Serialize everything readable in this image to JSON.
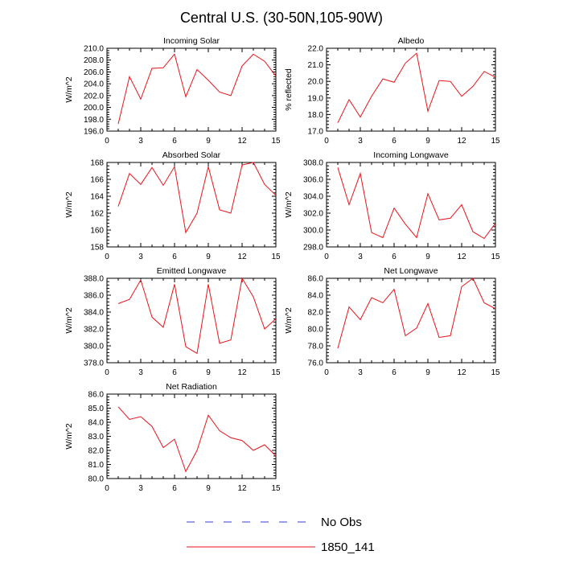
{
  "figure": {
    "title": "Central U.S. (30-50N,105-90W)"
  },
  "legend": {
    "entries": [
      {
        "name": "No Obs",
        "color": "#3b3bdb",
        "style": "dashed"
      },
      {
        "name": "1850_141",
        "color": "#e8141b",
        "style": "solid"
      }
    ]
  },
  "chart_data": [
    {
      "type": "line",
      "title": "Incoming Solar",
      "ylabel": "W/m^2",
      "xlim": [
        0,
        15
      ],
      "ylim": [
        196,
        210
      ],
      "xticks": [
        0,
        3,
        6,
        9,
        12,
        15
      ],
      "yticks": [
        196.0,
        198.0,
        200.0,
        202.0,
        204.0,
        206.0,
        208.0,
        210.0
      ],
      "ydecimals": 1,
      "series": [
        {
          "name": "1850_141",
          "color": "#e8141b",
          "x": [
            1,
            2,
            3,
            4,
            5,
            6,
            7,
            8,
            9,
            10,
            11,
            12,
            13,
            14,
            15
          ],
          "values": [
            197.2,
            205.2,
            201.4,
            206.6,
            206.7,
            209.0,
            201.8,
            206.4,
            204.6,
            202.6,
            202.0,
            207.0,
            209.0,
            207.8,
            205.3
          ]
        }
      ]
    },
    {
      "type": "line",
      "title": "Albedo",
      "ylabel": "% reflected",
      "xlim": [
        0,
        15
      ],
      "ylim": [
        17,
        22
      ],
      "xticks": [
        0,
        3,
        6,
        9,
        12,
        15
      ],
      "yticks": [
        17.0,
        18.0,
        19.0,
        20.0,
        21.0,
        22.0
      ],
      "ydecimals": 1,
      "series": [
        {
          "name": "1850_141",
          "color": "#e8141b",
          "x": [
            1,
            2,
            3,
            4,
            5,
            6,
            7,
            8,
            9,
            10,
            11,
            12,
            13,
            14,
            15
          ],
          "values": [
            17.5,
            18.9,
            17.85,
            19.1,
            20.15,
            19.95,
            21.1,
            21.7,
            18.2,
            20.05,
            20.0,
            19.1,
            19.7,
            20.6,
            20.25
          ]
        }
      ]
    },
    {
      "type": "line",
      "title": "Absorbed Solar",
      "ylabel": "W/m^2",
      "xlim": [
        0,
        15
      ],
      "ylim": [
        158,
        168
      ],
      "xticks": [
        0,
        3,
        6,
        9,
        12,
        15
      ],
      "yticks": [
        158,
        160,
        162,
        164,
        166,
        168
      ],
      "ydecimals": 0,
      "series": [
        {
          "name": "1850_141",
          "color": "#e8141b",
          "x": [
            1,
            2,
            3,
            4,
            5,
            6,
            7,
            8,
            9,
            10,
            11,
            12,
            13,
            14,
            15
          ],
          "values": [
            162.8,
            166.7,
            165.4,
            167.4,
            165.3,
            167.5,
            159.7,
            162.0,
            167.5,
            162.4,
            162.0,
            167.7,
            168.0,
            165.4,
            164.1
          ]
        }
      ]
    },
    {
      "type": "line",
      "title": "Incoming Longwave",
      "ylabel": "W/m^2",
      "xlim": [
        0,
        15
      ],
      "ylim": [
        298,
        308
      ],
      "xticks": [
        0,
        3,
        6,
        9,
        12,
        15
      ],
      "yticks": [
        298.0,
        300.0,
        302.0,
        304.0,
        306.0,
        308.0
      ],
      "ydecimals": 1,
      "series": [
        {
          "name": "1850_141",
          "color": "#e8141b",
          "x": [
            1,
            2,
            3,
            4,
            5,
            6,
            7,
            8,
            9,
            10,
            11,
            12,
            13,
            14,
            15
          ],
          "values": [
            307.4,
            303.0,
            306.7,
            299.7,
            299.1,
            302.6,
            300.7,
            299.1,
            304.3,
            301.2,
            301.4,
            303.0,
            299.8,
            299.0,
            300.8
          ]
        }
      ]
    },
    {
      "type": "line",
      "title": "Emitted Longwave",
      "ylabel": "W/m^2",
      "xlim": [
        0,
        15
      ],
      "ylim": [
        378,
        388
      ],
      "xticks": [
        0,
        3,
        6,
        9,
        12,
        15
      ],
      "yticks": [
        378.0,
        380.0,
        382.0,
        384.0,
        386.0,
        388.0
      ],
      "ydecimals": 1,
      "series": [
        {
          "name": "1850_141",
          "color": "#e8141b",
          "x": [
            1,
            2,
            3,
            4,
            5,
            6,
            7,
            8,
            9,
            10,
            11,
            12,
            13,
            14,
            15
          ],
          "values": [
            385.0,
            385.5,
            387.8,
            383.4,
            382.2,
            387.3,
            379.9,
            379.1,
            387.3,
            380.3,
            380.7,
            388.0,
            385.8,
            382.0,
            383.2
          ]
        }
      ]
    },
    {
      "type": "line",
      "title": "Net Longwave",
      "ylabel": "W/m^2",
      "xlim": [
        0,
        15
      ],
      "ylim": [
        76,
        86
      ],
      "xticks": [
        0,
        3,
        6,
        9,
        12,
        15
      ],
      "yticks": [
        76.0,
        78.0,
        80.0,
        82.0,
        84.0,
        86.0
      ],
      "ydecimals": 1,
      "series": [
        {
          "name": "1850_141",
          "color": "#e8141b",
          "x": [
            1,
            2,
            3,
            4,
            5,
            6,
            7,
            8,
            9,
            10,
            11,
            12,
            13,
            14,
            15
          ],
          "values": [
            77.7,
            82.6,
            81.1,
            83.7,
            83.1,
            84.7,
            79.2,
            80.1,
            83.0,
            79.0,
            79.2,
            85.0,
            86.0,
            83.1,
            82.4
          ]
        }
      ]
    },
    {
      "type": "line",
      "title": "Net Radiation",
      "ylabel": "W/m^2",
      "xlim": [
        0,
        15
      ],
      "ylim": [
        80,
        86
      ],
      "xticks": [
        0,
        3,
        6,
        9,
        12,
        15
      ],
      "yticks": [
        80.0,
        81.0,
        82.0,
        83.0,
        84.0,
        85.0,
        86.0
      ],
      "ydecimals": 1,
      "series": [
        {
          "name": "1850_141",
          "color": "#e8141b",
          "x": [
            1,
            2,
            3,
            4,
            5,
            6,
            7,
            8,
            9,
            10,
            11,
            12,
            13,
            14,
            15
          ],
          "values": [
            85.1,
            84.2,
            84.4,
            83.7,
            82.2,
            82.8,
            80.5,
            82.0,
            84.5,
            83.4,
            82.9,
            82.7,
            82.0,
            82.4,
            81.6
          ]
        }
      ]
    }
  ]
}
